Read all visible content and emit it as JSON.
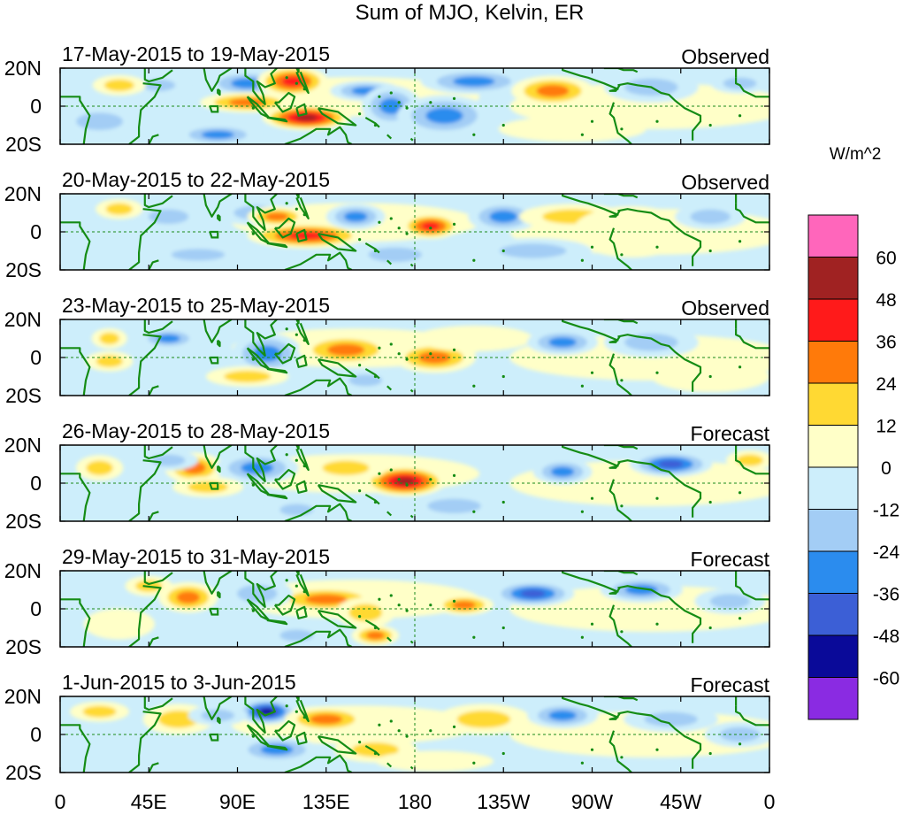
{
  "chart_data": {
    "type": "heatmap",
    "title": "Sum of MJO, Kelvin, ER",
    "units_label": "W/m^2",
    "x_ticks": [
      "0",
      "45E",
      "90E",
      "135E",
      "180",
      "135W",
      "90W",
      "45W",
      "0"
    ],
    "y_ticks": [
      "20N",
      "0",
      "20S"
    ],
    "lat_range": [
      -20,
      20
    ],
    "lon_range": [
      0,
      360
    ],
    "colorbar": {
      "levels": [
        "60",
        "48",
        "36",
        "24",
        "12",
        "0",
        "-12",
        "-24",
        "-36",
        "-48",
        "-60"
      ],
      "colors": [
        "#ff66bb",
        "#a02222",
        "#ff1a1a",
        "#ff7a0a",
        "#ffd933",
        "#ffffc8",
        "#cdeefb",
        "#a3cdf5",
        "#2b8cee",
        "#3c5fd6",
        "#0a0a99",
        "#8a2be2"
      ]
    },
    "panels": [
      {
        "date_range": "17-May-2015 to 19-May-2015",
        "label": "Observed",
        "anomalies": [
          {
            "lon": 95,
            "lat": 12,
            "value": -35,
            "wlon": 14,
            "wlat": 5
          },
          {
            "lon": 50,
            "lat": 11,
            "value": -20,
            "wlon": 10,
            "wlat": 4
          },
          {
            "lon": 30,
            "lat": 11,
            "value": 22,
            "wlon": 9,
            "wlat": 4
          },
          {
            "lon": 118,
            "lat": 13,
            "value": 42,
            "wlon": 12,
            "wlat": 6
          },
          {
            "lon": 95,
            "lat": 2,
            "value": 28,
            "wlon": 16,
            "wlat": 4
          },
          {
            "lon": 125,
            "lat": -6,
            "value": 52,
            "wlon": 15,
            "wlat": 5
          },
          {
            "lon": 80,
            "lat": -15,
            "value": -25,
            "wlon": 14,
            "wlat": 4
          },
          {
            "lon": 155,
            "lat": 8,
            "value": -30,
            "wlon": 12,
            "wlat": 4
          },
          {
            "lon": 168,
            "lat": 0,
            "value": -32,
            "wlon": 10,
            "wlat": 8
          },
          {
            "lon": 195,
            "lat": -5,
            "value": -28,
            "wlon": 16,
            "wlat": 8
          },
          {
            "lon": 210,
            "lat": 13,
            "value": -25,
            "wlon": 18,
            "wlat": 5
          },
          {
            "lon": 250,
            "lat": 8,
            "value": 32,
            "wlon": 14,
            "wlat": 6
          },
          {
            "lon": 300,
            "lat": 10,
            "value": -22,
            "wlon": 16,
            "wlat": 6
          },
          {
            "lon": 345,
            "lat": 12,
            "value": -15,
            "wlon": 10,
            "wlat": 4
          },
          {
            "lon": 20,
            "lat": -8,
            "value": -14,
            "wlon": 14,
            "wlat": 6
          },
          {
            "lon": 260,
            "lat": -12,
            "value": 10,
            "wlon": 25,
            "wlat": 5
          }
        ]
      },
      {
        "date_range": "20-May-2015 to 22-May-2015",
        "label": "Observed",
        "anomalies": [
          {
            "lon": 100,
            "lat": 10,
            "value": -22,
            "wlon": 14,
            "wlat": 5
          },
          {
            "lon": 55,
            "lat": 8,
            "value": -20,
            "wlon": 12,
            "wlat": 5
          },
          {
            "lon": 30,
            "lat": 12,
            "value": 18,
            "wlon": 8,
            "wlat": 4
          },
          {
            "lon": 125,
            "lat": -2,
            "value": 45,
            "wlon": 20,
            "wlat": 5
          },
          {
            "lon": 110,
            "lat": 8,
            "value": 30,
            "wlon": 10,
            "wlat": 4
          },
          {
            "lon": 70,
            "lat": -12,
            "value": -24,
            "wlon": 16,
            "wlat": 4
          },
          {
            "lon": 150,
            "lat": 8,
            "value": -26,
            "wlon": 10,
            "wlat": 5
          },
          {
            "lon": 188,
            "lat": 3,
            "value": 44,
            "wlon": 10,
            "wlat": 5
          },
          {
            "lon": 225,
            "lat": 8,
            "value": -28,
            "wlon": 12,
            "wlat": 6
          },
          {
            "lon": 260,
            "lat": 8,
            "value": 22,
            "wlon": 18,
            "wlat": 5
          },
          {
            "lon": 290,
            "lat": 0,
            "value": 12,
            "wlon": 20,
            "wlat": 10
          },
          {
            "lon": 240,
            "lat": -10,
            "value": -16,
            "wlon": 20,
            "wlat": 5
          },
          {
            "lon": 330,
            "lat": 8,
            "value": -16,
            "wlon": 12,
            "wlat": 5
          },
          {
            "lon": 170,
            "lat": -12,
            "value": -14,
            "wlon": 16,
            "wlat": 5
          }
        ]
      },
      {
        "date_range": "23-May-2015 to 25-May-2015",
        "label": "Observed",
        "anomalies": [
          {
            "lon": 105,
            "lat": 2,
            "value": -32,
            "wlon": 12,
            "wlat": 8
          },
          {
            "lon": 55,
            "lat": 10,
            "value": -28,
            "wlon": 10,
            "wlat": 4
          },
          {
            "lon": 25,
            "lat": 10,
            "value": 20,
            "wlon": 6,
            "wlat": 4
          },
          {
            "lon": 25,
            "lat": -2,
            "value": 22,
            "wlon": 8,
            "wlat": 4
          },
          {
            "lon": 145,
            "lat": 4,
            "value": 26,
            "wlon": 16,
            "wlat": 6
          },
          {
            "lon": 190,
            "lat": 0,
            "value": 30,
            "wlon": 14,
            "wlat": 6
          },
          {
            "lon": 210,
            "lat": 10,
            "value": 12,
            "wlon": 20,
            "wlat": 5
          },
          {
            "lon": 155,
            "lat": -12,
            "value": -18,
            "wlon": 10,
            "wlat": 4
          },
          {
            "lon": 255,
            "lat": 8,
            "value": -30,
            "wlon": 12,
            "wlat": 5
          },
          {
            "lon": 300,
            "lat": 8,
            "value": -14,
            "wlon": 16,
            "wlat": 6
          },
          {
            "lon": 95,
            "lat": -10,
            "value": 14,
            "wlon": 14,
            "wlat": 4
          },
          {
            "lon": 330,
            "lat": -10,
            "value": 8,
            "wlon": 20,
            "wlat": 6
          }
        ]
      },
      {
        "date_range": "26-May-2015 to 28-May-2015",
        "label": "Forecast",
        "anomalies": [
          {
            "lon": 175,
            "lat": 1,
            "value": 52,
            "wlon": 14,
            "wlat": 6
          },
          {
            "lon": 145,
            "lat": 8,
            "value": 20,
            "wlon": 14,
            "wlat": 5
          },
          {
            "lon": 68,
            "lat": 8,
            "value": 26,
            "wlon": 10,
            "wlat": 6
          },
          {
            "lon": 100,
            "lat": 8,
            "value": -28,
            "wlon": 14,
            "wlat": 6
          },
          {
            "lon": 55,
            "lat": 12,
            "value": -18,
            "wlon": 10,
            "wlat": 4
          },
          {
            "lon": 20,
            "lat": 8,
            "value": 18,
            "wlon": 8,
            "wlat": 5
          },
          {
            "lon": 310,
            "lat": 10,
            "value": -42,
            "wlon": 14,
            "wlat": 5
          },
          {
            "lon": 255,
            "lat": 6,
            "value": -26,
            "wlon": 10,
            "wlat": 5
          },
          {
            "lon": 75,
            "lat": -2,
            "value": 22,
            "wlon": 12,
            "wlat": 4
          },
          {
            "lon": 200,
            "lat": -12,
            "value": -14,
            "wlon": 16,
            "wlat": 5
          },
          {
            "lon": 350,
            "lat": 12,
            "value": 16,
            "wlon": 8,
            "wlat": 4
          },
          {
            "lon": 120,
            "lat": -14,
            "value": -18,
            "wlon": 10,
            "wlat": 4
          }
        ]
      },
      {
        "date_range": "29-May-2015 to 31-May-2015",
        "label": "Forecast",
        "anomalies": [
          {
            "lon": 135,
            "lat": 5,
            "value": 30,
            "wlon": 18,
            "wlat": 5
          },
          {
            "lon": 155,
            "lat": -2,
            "value": 24,
            "wlon": 10,
            "wlat": 6
          },
          {
            "lon": 160,
            "lat": -14,
            "value": 30,
            "wlon": 8,
            "wlat": 4
          },
          {
            "lon": 65,
            "lat": 6,
            "value": 26,
            "wlon": 10,
            "wlat": 6
          },
          {
            "lon": 45,
            "lat": 12,
            "value": 20,
            "wlon": 8,
            "wlat": 4
          },
          {
            "lon": 100,
            "lat": 8,
            "value": -24,
            "wlon": 12,
            "wlat": 6
          },
          {
            "lon": 205,
            "lat": 2,
            "value": 36,
            "wlon": 10,
            "wlat": 4
          },
          {
            "lon": 240,
            "lat": 8,
            "value": -44,
            "wlon": 14,
            "wlat": 5
          },
          {
            "lon": 295,
            "lat": 10,
            "value": -30,
            "wlon": 14,
            "wlat": 5
          },
          {
            "lon": 340,
            "lat": 4,
            "value": -16,
            "wlon": 12,
            "wlat": 5
          },
          {
            "lon": 120,
            "lat": -14,
            "value": -22,
            "wlon": 10,
            "wlat": 4
          },
          {
            "lon": 30,
            "lat": -8,
            "value": 12,
            "wlon": 12,
            "wlat": 6
          }
        ]
      },
      {
        "date_range": "1-Jun-2015 to 3-Jun-2015",
        "label": "Forecast",
        "anomalies": [
          {
            "lon": 105,
            "lat": 12,
            "value": -52,
            "wlon": 10,
            "wlat": 5
          },
          {
            "lon": 135,
            "lat": 8,
            "value": 26,
            "wlon": 14,
            "wlat": 5
          },
          {
            "lon": 60,
            "lat": 8,
            "value": 24,
            "wlon": 12,
            "wlat": 6
          },
          {
            "lon": 80,
            "lat": 10,
            "value": -20,
            "wlon": 10,
            "wlat": 4
          },
          {
            "lon": 20,
            "lat": 12,
            "value": 18,
            "wlon": 10,
            "wlat": 4
          },
          {
            "lon": 215,
            "lat": 8,
            "value": 20,
            "wlon": 16,
            "wlat": 6
          },
          {
            "lon": 255,
            "lat": 10,
            "value": -30,
            "wlon": 12,
            "wlat": 5
          },
          {
            "lon": 310,
            "lat": 8,
            "value": -18,
            "wlon": 16,
            "wlat": 5
          },
          {
            "lon": 110,
            "lat": -8,
            "value": -26,
            "wlon": 14,
            "wlat": 5
          },
          {
            "lon": 160,
            "lat": -8,
            "value": 18,
            "wlon": 14,
            "wlat": 5
          },
          {
            "lon": 345,
            "lat": 0,
            "value": -14,
            "wlon": 12,
            "wlat": 5
          },
          {
            "lon": 190,
            "lat": -14,
            "value": 10,
            "wlon": 20,
            "wlat": 4
          }
        ]
      }
    ]
  }
}
